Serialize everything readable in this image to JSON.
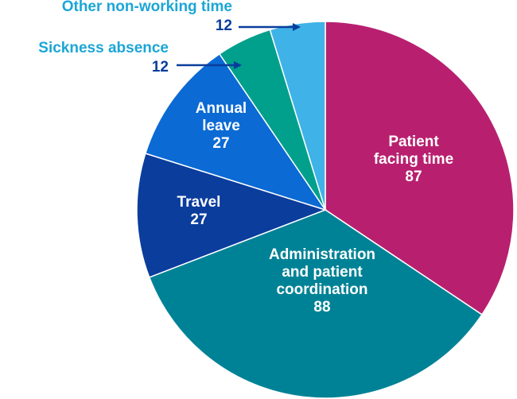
{
  "chart_data": {
    "type": "pie",
    "title": "",
    "start_angle_deg": 0,
    "direction": "clockwise",
    "colors": {
      "callout_text": "#1ba6d6",
      "arrow": "#0a3d9c"
    },
    "slices": [
      {
        "label_lines": [
          "Patient",
          "facing time"
        ],
        "value": 87,
        "value_text": "87",
        "color": "#b8206f",
        "label_mode": "inside"
      },
      {
        "label_lines": [
          "Administration",
          "and patient",
          "coordination"
        ],
        "value": 88,
        "value_text": "88",
        "color": "#008296",
        "label_mode": "inside"
      },
      {
        "label_lines": [
          "Travel"
        ],
        "value": 27,
        "value_text": "27",
        "color": "#0a3d9c",
        "label_mode": "inside"
      },
      {
        "label_lines": [
          "Annual",
          "leave"
        ],
        "value": 27,
        "value_text": "27",
        "color": "#0b6ad4",
        "label_mode": "inside"
      },
      {
        "label_lines": [
          "Sickness absence"
        ],
        "value": 12,
        "value_text": "12",
        "color": "#00a08c",
        "label_mode": "callout"
      },
      {
        "label_lines": [
          "Other non-working time"
        ],
        "value": 12,
        "value_text": "12",
        "color": "#3fb2e8",
        "label_mode": "callout"
      }
    ]
  }
}
